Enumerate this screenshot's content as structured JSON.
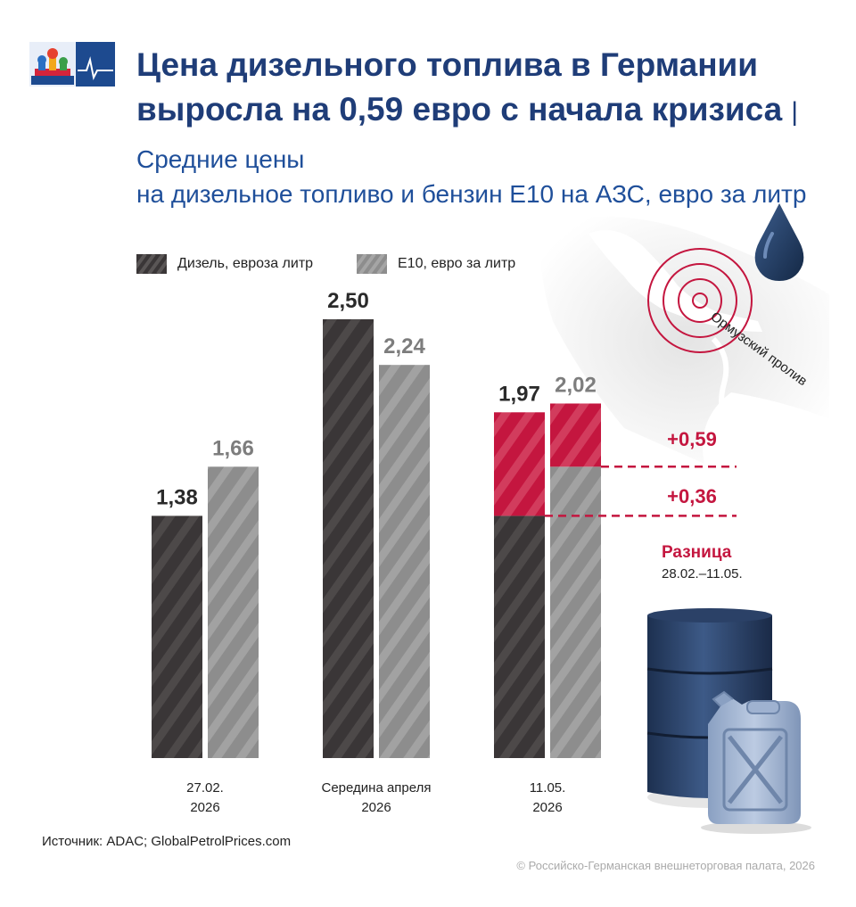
{
  "header": {
    "title": "Цена дизельного топлива в Германии выросла на 0,59 евро с начала кризиса",
    "separator": "|",
    "subtitle_part1": "Средние цены",
    "subtitle_part2": "на дизельное топливо и бензин Е10 на АЗС, евро за литр"
  },
  "legend": {
    "diesel": "Дизель, евроза литр",
    "e10": "E10, евро за литр"
  },
  "chart_data": {
    "type": "bar",
    "categories": [
      "27.02.\n2026",
      "Середина апреля\n2026",
      "11.05.\n2026"
    ],
    "series": [
      {
        "name": "Дизель, евроза литр",
        "values": [
          1.38,
          2.5,
          1.97
        ],
        "labels": [
          "1,38",
          "2,50",
          "1,97"
        ]
      },
      {
        "name": "E10, евро за литр",
        "values": [
          1.66,
          2.24,
          2.02
        ],
        "labels": [
          "1,66",
          "2,24",
          "2,02"
        ]
      }
    ],
    "increases": [
      {
        "label": "+0,59",
        "series": "Дизель, евроза литр",
        "value": 0.59
      },
      {
        "label": "+0,36",
        "series": "E10, евро за литр",
        "value": 0.36
      }
    ],
    "ylim": [
      0,
      2.5
    ],
    "grid": false,
    "legend_position": "top-left"
  },
  "colors": {
    "title": "#1f3d78",
    "subtitle": "#1f4f9a",
    "diesel": "#3a3637",
    "e10": "#8d8d8d",
    "increase": "#c4163f",
    "diesel_label": "#2a2a2a",
    "e10_label": "#7d7d7d"
  },
  "difference": {
    "label": "Разница",
    "range": "28.02.–11.05."
  },
  "map": {
    "strait_label": "Ормузский пролив"
  },
  "icons": [
    "logo-icon",
    "oil-drop-icon",
    "map-hormuz-icon",
    "oil-barrel-icon",
    "jerrycan-icon"
  ],
  "footer": {
    "source": "Источник: ADAC; GlobalPetrolPrices.com",
    "copyright": "© Российско-Германская внешнеторговая палата, 2026"
  }
}
